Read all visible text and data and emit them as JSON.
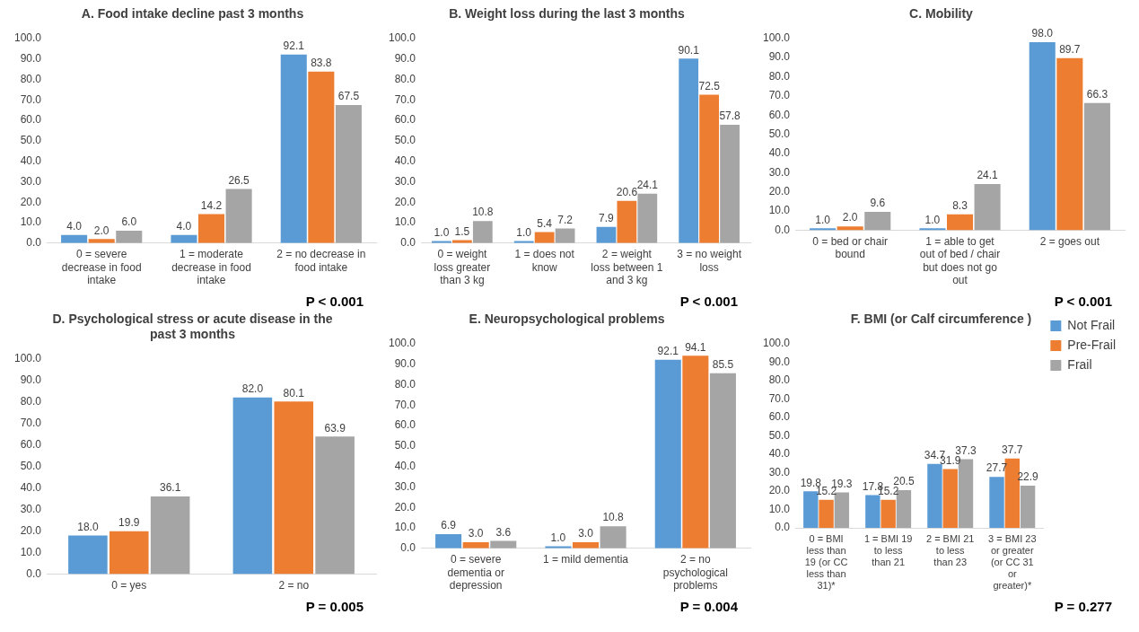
{
  "chart_data": [
    {
      "type": "bar",
      "title": "A. Food intake decline past 3 months",
      "categories": [
        "0 = severe decrease in food intake",
        "1 = moderate decrease in food intake",
        "2 = no decrease in food intake"
      ],
      "series": [
        {
          "color": "#5b9bd5",
          "values": [
            4.0,
            4.0,
            92.1
          ],
          "value_labels": [
            "4.0",
            "4.0",
            "92.1"
          ]
        },
        {
          "color": "#ed7d31",
          "values": [
            2.0,
            14.2,
            83.8
          ],
          "value_labels": [
            "2.0",
            "14.2",
            "83.8"
          ]
        },
        {
          "color": "#a5a5a5",
          "values": [
            6.0,
            26.5,
            67.5
          ],
          "value_labels": [
            "6.0",
            "26.5",
            "67.5"
          ]
        }
      ],
      "ylim": [
        0,
        100
      ],
      "yticks": [
        {
          "value": 0,
          "label": "0.0"
        },
        {
          "value": 10,
          "label": "10.0"
        },
        {
          "value": 20,
          "label": "20.0"
        },
        {
          "value": 30,
          "label": "30.0"
        },
        {
          "value": 40,
          "label": "40.0"
        },
        {
          "value": 50,
          "label": "50.0"
        },
        {
          "value": 60,
          "label": "60.0"
        },
        {
          "value": 70,
          "label": "70.0"
        },
        {
          "value": 80,
          "label": "80.0"
        },
        {
          "value": 90,
          "label": "90.0"
        },
        {
          "value": 100,
          "label": "100.0"
        }
      ],
      "legend": false,
      "annotations": [
        "P < 0.001"
      ]
    },
    {
      "type": "bar",
      "title": "B. Weight loss during the last 3 months",
      "categories": [
        "0 = weight loss greater than 3 kg",
        "1 = does not know",
        "2 = weight loss between 1 and 3 kg",
        "3 = no weight loss"
      ],
      "series": [
        {
          "color": "#5b9bd5",
          "values": [
            1.0,
            1.0,
            7.9,
            90.1
          ],
          "value_labels": [
            "1.0",
            "1.0",
            "7.9",
            "90.1"
          ]
        },
        {
          "color": "#ed7d31",
          "values": [
            1.5,
            5.4,
            20.6,
            72.5
          ],
          "value_labels": [
            "1.5",
            "5.4",
            "20.6",
            "72.5"
          ]
        },
        {
          "color": "#a5a5a5",
          "values": [
            10.8,
            7.2,
            24.1,
            57.8
          ],
          "value_labels": [
            "10.8",
            "7.2",
            "24.1",
            "57.8"
          ]
        }
      ],
      "ylim": [
        0,
        100
      ],
      "yticks": [
        {
          "value": 0,
          "label": "0.0"
        },
        {
          "value": 10,
          "label": "10.0"
        },
        {
          "value": 20,
          "label": "20.0"
        },
        {
          "value": 30,
          "label": "30.0"
        },
        {
          "value": 40,
          "label": "40.0"
        },
        {
          "value": 50,
          "label": "50.0"
        },
        {
          "value": 60,
          "label": "60.0"
        },
        {
          "value": 70,
          "label": "70.0"
        },
        {
          "value": 80,
          "label": "80.0"
        },
        {
          "value": 90,
          "label": "90.0"
        },
        {
          "value": 100,
          "label": "100.0"
        }
      ],
      "legend": false,
      "annotations": [
        "P < 0.001"
      ]
    },
    {
      "type": "bar",
      "title": "C. Mobility",
      "categories": [
        "0 = bed or chair bound",
        "1 = able to get out of bed / chair but does not go out",
        "2 = goes out"
      ],
      "series": [
        {
          "color": "#5b9bd5",
          "values": [
            1.0,
            1.0,
            98.0
          ],
          "value_labels": [
            "1.0",
            "1.0",
            "98.0"
          ]
        },
        {
          "color": "#ed7d31",
          "values": [
            2.0,
            8.3,
            89.7
          ],
          "value_labels": [
            "2.0",
            "8.3",
            "89.7"
          ]
        },
        {
          "color": "#a5a5a5",
          "values": [
            9.6,
            24.1,
            66.3
          ],
          "value_labels": [
            "9.6",
            "24.1",
            "66.3"
          ]
        }
      ],
      "ylim": [
        0,
        100
      ],
      "yticks": [
        {
          "value": 0,
          "label": "0.0"
        },
        {
          "value": 10,
          "label": "10.0"
        },
        {
          "value": 20,
          "label": "20.0"
        },
        {
          "value": 30,
          "label": "30.0"
        },
        {
          "value": 40,
          "label": "40.0"
        },
        {
          "value": 50,
          "label": "50.0"
        },
        {
          "value": 60,
          "label": "60.0"
        },
        {
          "value": 70,
          "label": "70.0"
        },
        {
          "value": 80,
          "label": "80.0"
        },
        {
          "value": 90,
          "label": "90.0"
        },
        {
          "value": 100,
          "label": "100.0"
        }
      ],
      "legend": false,
      "annotations": [
        "P < 0.001"
      ]
    },
    {
      "type": "bar",
      "title": "D. Psychological stress or acute disease in the past 3 months",
      "categories": [
        "0 = yes",
        "2 = no"
      ],
      "series": [
        {
          "color": "#5b9bd5",
          "values": [
            18.0,
            82.0
          ],
          "value_labels": [
            "18.0",
            "82.0"
          ]
        },
        {
          "color": "#ed7d31",
          "values": [
            19.9,
            80.1
          ],
          "value_labels": [
            "19.9",
            "80.1"
          ]
        },
        {
          "color": "#a5a5a5",
          "values": [
            36.1,
            63.9
          ],
          "value_labels": [
            "36.1",
            "63.9"
          ]
        }
      ],
      "ylim": [
        0,
        100
      ],
      "yticks": [
        {
          "value": 0,
          "label": "0.0"
        },
        {
          "value": 10,
          "label": "10.0"
        },
        {
          "value": 20,
          "label": "20.0"
        },
        {
          "value": 30,
          "label": "30.0"
        },
        {
          "value": 40,
          "label": "40.0"
        },
        {
          "value": 50,
          "label": "50.0"
        },
        {
          "value": 60,
          "label": "60.0"
        },
        {
          "value": 70,
          "label": "70.0"
        },
        {
          "value": 80,
          "label": "80.0"
        },
        {
          "value": 90,
          "label": "90.0"
        },
        {
          "value": 100,
          "label": "100.0"
        }
      ],
      "legend": false,
      "annotations": [
        "P = 0.005"
      ]
    },
    {
      "type": "bar",
      "title": "E. Neuropsychological problems",
      "categories": [
        "0 = severe dementia or depression",
        "1 = mild dementia",
        "2 = no psychological problems"
      ],
      "series": [
        {
          "color": "#5b9bd5",
          "values": [
            6.9,
            1.0,
            92.1
          ],
          "value_labels": [
            "6.9",
            "1.0",
            "92.1"
          ]
        },
        {
          "color": "#ed7d31",
          "values": [
            3.0,
            3.0,
            94.1
          ],
          "value_labels": [
            "3.0",
            "3.0",
            "94.1"
          ]
        },
        {
          "color": "#a5a5a5",
          "values": [
            3.6,
            10.8,
            85.5
          ],
          "value_labels": [
            "3.6",
            "10.8",
            "85.5"
          ]
        }
      ],
      "ylim": [
        0,
        100
      ],
      "yticks": [
        {
          "value": 0,
          "label": "0.0"
        },
        {
          "value": 10,
          "label": "10.0"
        },
        {
          "value": 20,
          "label": "20.0"
        },
        {
          "value": 30,
          "label": "30.0"
        },
        {
          "value": 40,
          "label": "40.0"
        },
        {
          "value": 50,
          "label": "50.0"
        },
        {
          "value": 60,
          "label": "60.0"
        },
        {
          "value": 70,
          "label": "70.0"
        },
        {
          "value": 80,
          "label": "80.0"
        },
        {
          "value": 90,
          "label": "90.0"
        },
        {
          "value": 100,
          "label": "100.0"
        }
      ],
      "legend": false,
      "annotations": [
        "P = 0.004"
      ]
    },
    {
      "type": "bar",
      "title": "F. BMI (or Calf circumference )",
      "categories": [
        "0 = BMI less than 19 (or CC less than 31)*",
        "1 = BMI 19 to less than 21",
        "2 = BMI 21 to less than 23",
        "3 = BMI 23 or greater (or CC 31 or greater)*"
      ],
      "series": [
        {
          "name": "Not Frail",
          "color": "#5b9bd5",
          "values": [
            19.8,
            17.8,
            34.7,
            27.7
          ],
          "value_labels": [
            "19.8",
            "17.8",
            "34.7",
            "27.7"
          ]
        },
        {
          "name": "Pre-Frail",
          "color": "#ed7d31",
          "values": [
            15.2,
            15.2,
            31.9,
            37.7
          ],
          "value_labels": [
            "15.2",
            "15.2",
            "31.9",
            "37.7"
          ]
        },
        {
          "name": "Frail",
          "color": "#a5a5a5",
          "values": [
            19.3,
            20.5,
            37.3,
            22.9
          ],
          "value_labels": [
            "19.3",
            "20.5",
            "37.3",
            "22.9"
          ]
        }
      ],
      "ylim": [
        0,
        100
      ],
      "yticks": [
        {
          "value": 0,
          "label": "0.0"
        },
        {
          "value": 10,
          "label": "10.0"
        },
        {
          "value": 20,
          "label": "20.0"
        },
        {
          "value": 30,
          "label": "30.0"
        },
        {
          "value": 40,
          "label": "40.0"
        },
        {
          "value": 50,
          "label": "50.0"
        },
        {
          "value": 60,
          "label": "60.0"
        },
        {
          "value": 70,
          "label": "70.0"
        },
        {
          "value": 80,
          "label": "80.0"
        },
        {
          "value": 90,
          "label": "90.0"
        },
        {
          "value": 100,
          "label": "100.0"
        }
      ],
      "legend": "top right",
      "annotations": [
        "P = 0.277"
      ]
    }
  ]
}
